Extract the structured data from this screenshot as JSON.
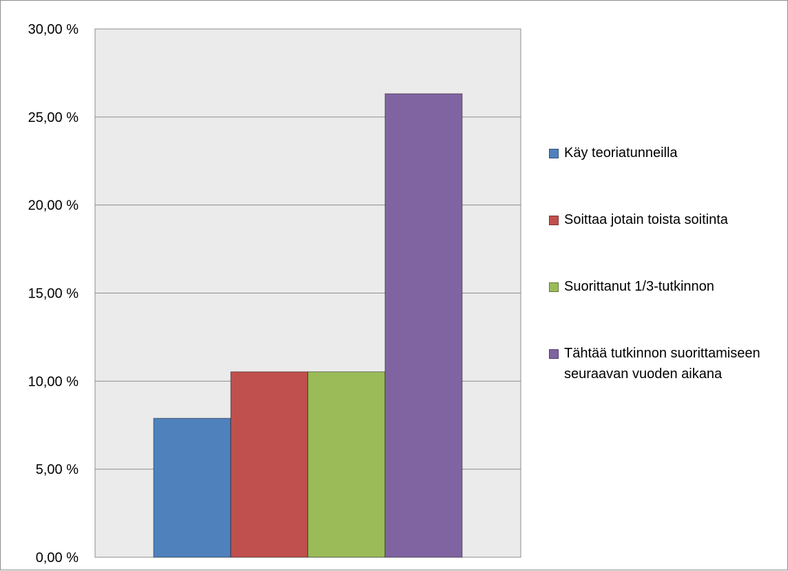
{
  "chart_data": {
    "type": "bar",
    "title": "",
    "xlabel": "",
    "ylabel": "",
    "ylim": [
      0,
      30
    ],
    "yticks": [
      "0,00 %",
      "5,00 %",
      "10,00 %",
      "15,00 %",
      "20,00 %",
      "25,00 %",
      "30,00 %"
    ],
    "grid": true,
    "legend_position": "right",
    "series": [
      {
        "name": "Käy teoriatunneilla",
        "value": 7.89,
        "color": "#4f81bd"
      },
      {
        "name": "Soittaa jotain toista soitinta",
        "value": 10.53,
        "color": "#c0504d"
      },
      {
        "name": "Suorittanut 1/3-tutkinnon",
        "value": 10.53,
        "color": "#9bbb59"
      },
      {
        "name": "Tähtää tutkinnon suorittamiseen seuraavan vuoden aikana",
        "value": 26.32,
        "color": "#8064a2"
      }
    ],
    "plot_background": "#ebebeb"
  }
}
